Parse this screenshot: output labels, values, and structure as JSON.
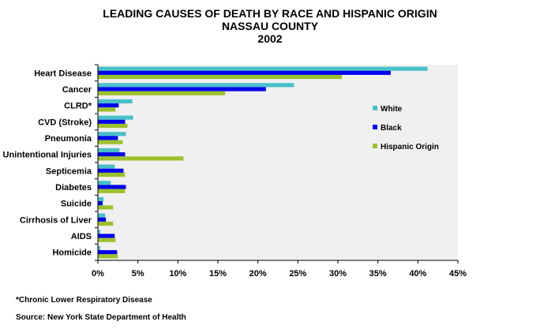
{
  "chart_data": {
    "type": "bar",
    "orientation": "horizontal",
    "title": [
      "LEADING CAUSES OF DEATH BY RACE AND HISPANIC ORIGIN",
      "NASSAU COUNTY",
      "2002"
    ],
    "categories": [
      "Heart Disease",
      "Cancer",
      "CLRD*",
      "CVD (Stroke)",
      "Pneumonia",
      "Unintentional Injuries",
      "Septicemia",
      "Diabetes",
      "Suicide",
      "Cirrhosis of Liver",
      "AIDS",
      "Homicide"
    ],
    "series": [
      {
        "name": "White",
        "color": "#48c0c8",
        "values": [
          41.2,
          24.5,
          4.3,
          4.4,
          3.5,
          2.7,
          2.1,
          1.6,
          0.7,
          0.9,
          0.3,
          0.3
        ]
      },
      {
        "name": "Black",
        "color": "#0000ee",
        "values": [
          36.6,
          21.0,
          2.6,
          3.4,
          2.5,
          3.4,
          3.2,
          3.5,
          0.6,
          1.0,
          2.1,
          2.4
        ]
      },
      {
        "name": "Hispanic Origin",
        "color": "#9dc12c",
        "values": [
          30.5,
          15.9,
          2.2,
          3.7,
          3.1,
          10.7,
          3.4,
          3.4,
          1.9,
          1.9,
          2.2,
          2.5
        ]
      }
    ],
    "x_ticks": [
      "0%",
      "5%",
      "10%",
      "15%",
      "20%",
      "25%",
      "30%",
      "35%",
      "40%",
      "45%"
    ],
    "xlim": [
      0,
      45
    ],
    "grid": false,
    "legend_position": "right",
    "plot_background": "#f0f0f0"
  },
  "footnotes": {
    "abbreviation": "*Chronic Lower Respiratory Disease",
    "source": "Source:  New York State Department of Health"
  }
}
